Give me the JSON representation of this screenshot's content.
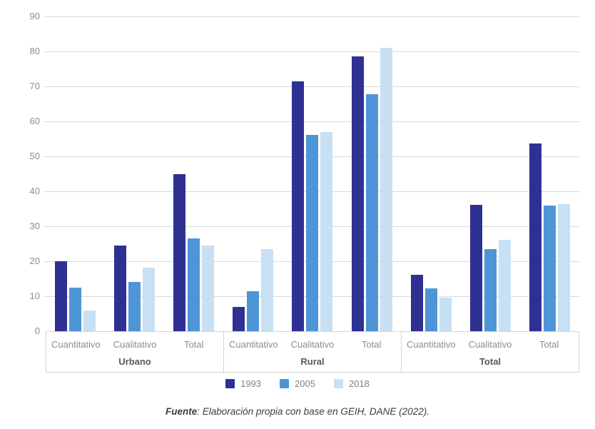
{
  "chart_data": {
    "type": "bar",
    "title": "",
    "xlabel": "",
    "ylabel": "",
    "ylim": [
      0,
      90
    ],
    "yticks": [
      0,
      10,
      20,
      30,
      40,
      50,
      60,
      70,
      80,
      90
    ],
    "grid": true,
    "legend_position": "bottom",
    "groups": [
      "Urbano",
      "Rural",
      "Total"
    ],
    "subcategories": [
      "Cuantitativo",
      "Cualitativo",
      "Total"
    ],
    "series": [
      {
        "name": "1993",
        "color": "#2e3192",
        "values": [
          20.1,
          24.5,
          44.9,
          6.9,
          71.5,
          78.5,
          16.1,
          36.1,
          53.6
        ]
      },
      {
        "name": "2005",
        "color": "#4e95d8",
        "values": [
          12.4,
          14.0,
          26.6,
          11.5,
          56.2,
          67.8,
          12.3,
          23.5,
          36.0
        ]
      },
      {
        "name": "2018",
        "color": "#c7e0f4",
        "values": [
          6.0,
          18.2,
          24.4,
          23.4,
          56.9,
          81.0,
          9.5,
          26.1,
          36.4
        ]
      }
    ]
  },
  "footer": {
    "prefix": "Fuente",
    "text": ": Elaboración propia con base en GEIH, DANE (2022)."
  },
  "colors": {
    "gridline": "#d9d9d9",
    "axis_box_border": "#d4d4d4",
    "tick_label": "#8c8c8c",
    "group_label": "#595959",
    "legend_label": "#808080",
    "footer_text": "#3d3d3d",
    "background": "#ffffff"
  }
}
